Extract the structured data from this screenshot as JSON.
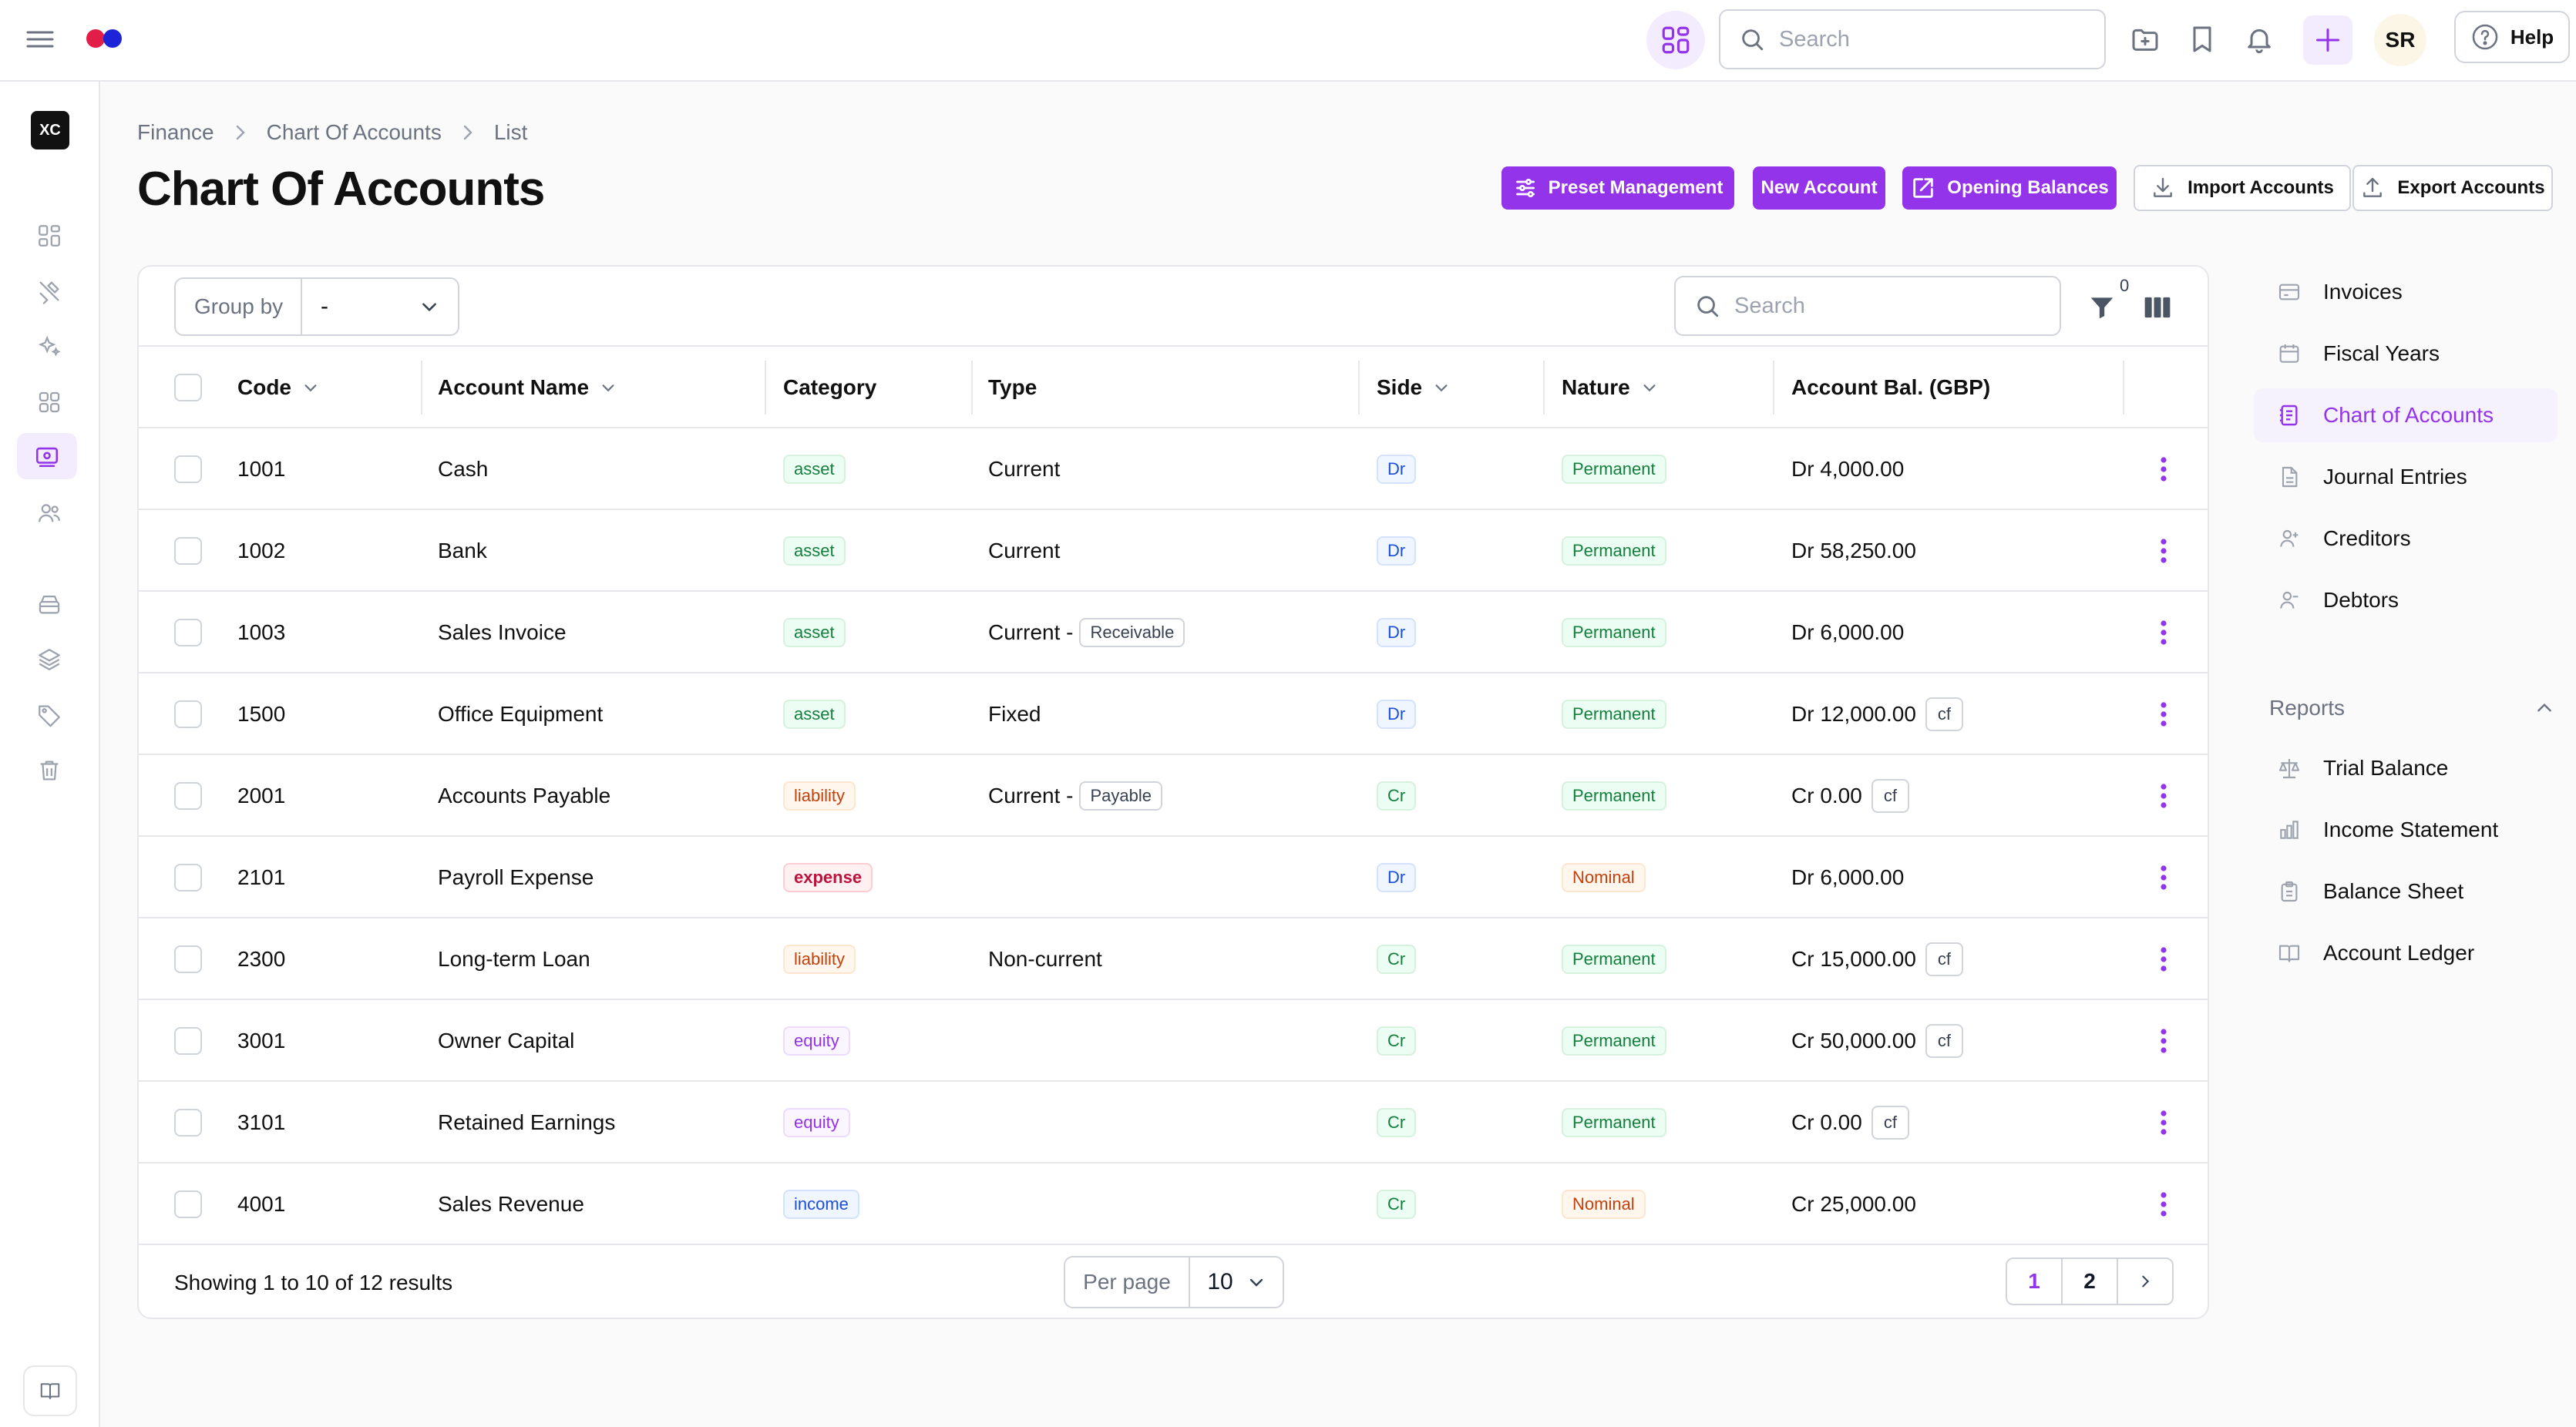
{
  "header": {
    "search_placeholder": "Search",
    "avatar_initials": "SR",
    "help_label": "Help"
  },
  "rail": {
    "workspace_badge": "XC"
  },
  "breadcrumb": [
    "Finance",
    "Chart Of Accounts",
    "List"
  ],
  "page_title": "Chart Of Accounts",
  "actions": {
    "preset_management": "Preset Management",
    "new_account": "New Account",
    "opening_balances": "Opening Balances",
    "import_accounts": "Import Accounts",
    "export_accounts": "Export Accounts"
  },
  "toolbar": {
    "group_by_label": "Group by",
    "group_by_value": "-",
    "search_placeholder": "Search",
    "filter_count": "0"
  },
  "columns": {
    "code": "Code",
    "account_name": "Account Name",
    "category": "Category",
    "type": "Type",
    "side": "Side",
    "nature": "Nature",
    "balance": "Account Bal. (GBP)"
  },
  "rows": [
    {
      "code": "1001",
      "name": "Cash",
      "category": "asset",
      "type": "Current",
      "subtype": "",
      "side": "Dr",
      "nature": "Permanent",
      "balance": "Dr 4,000.00",
      "cf": ""
    },
    {
      "code": "1002",
      "name": "Bank",
      "category": "asset",
      "type": "Current",
      "subtype": "",
      "side": "Dr",
      "nature": "Permanent",
      "balance": "Dr 58,250.00",
      "cf": ""
    },
    {
      "code": "1003",
      "name": "Sales Invoice",
      "category": "asset",
      "type": "Current -",
      "subtype": "Receivable",
      "side": "Dr",
      "nature": "Permanent",
      "balance": "Dr 6,000.00",
      "cf": ""
    },
    {
      "code": "1500",
      "name": "Office Equipment",
      "category": "asset",
      "type": "Fixed",
      "subtype": "",
      "side": "Dr",
      "nature": "Permanent",
      "balance": "Dr 12,000.00",
      "cf": "cf"
    },
    {
      "code": "2001",
      "name": "Accounts Payable",
      "category": "liability",
      "type": "Current -",
      "subtype": "Payable",
      "side": "Cr",
      "nature": "Permanent",
      "balance": "Cr 0.00",
      "cf": "cf"
    },
    {
      "code": "2101",
      "name": "Payroll Expense",
      "category": "expense",
      "type": "",
      "subtype": "",
      "side": "Dr",
      "nature": "Nominal",
      "balance": "Dr 6,000.00",
      "cf": ""
    },
    {
      "code": "2300",
      "name": "Long-term Loan",
      "category": "liability",
      "type": "Non-current",
      "subtype": "",
      "side": "Cr",
      "nature": "Permanent",
      "balance": "Cr 15,000.00",
      "cf": "cf"
    },
    {
      "code": "3001",
      "name": "Owner Capital",
      "category": "equity",
      "type": "",
      "subtype": "",
      "side": "Cr",
      "nature": "Permanent",
      "balance": "Cr 50,000.00",
      "cf": "cf"
    },
    {
      "code": "3101",
      "name": "Retained Earnings",
      "category": "equity",
      "type": "",
      "subtype": "",
      "side": "Cr",
      "nature": "Permanent",
      "balance": "Cr 0.00",
      "cf": "cf"
    },
    {
      "code": "4001",
      "name": "Sales Revenue",
      "category": "income",
      "type": "",
      "subtype": "",
      "side": "Cr",
      "nature": "Nominal",
      "balance": "Cr 25,000.00",
      "cf": ""
    }
  ],
  "footer": {
    "results_text": "Showing 1 to 10 of 12 results",
    "per_page_label": "Per page",
    "per_page_value": "10",
    "pages": [
      "1",
      "2"
    ]
  },
  "right_sidebar": {
    "items": [
      "Invoices",
      "Fiscal Years",
      "Chart of Accounts",
      "Journal Entries",
      "Creditors",
      "Debtors"
    ],
    "reports_heading": "Reports",
    "reports": [
      "Trial Balance",
      "Income Statement",
      "Balance Sheet",
      "Account Ledger"
    ]
  },
  "colors": {
    "accent": "#9333ea",
    "accent_light": "#f3ecff"
  }
}
